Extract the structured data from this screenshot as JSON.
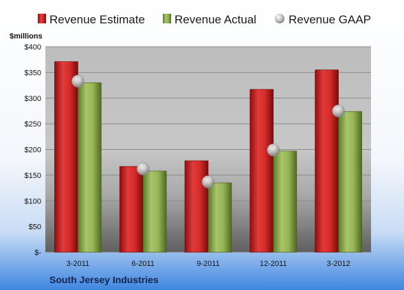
{
  "chart_data": {
    "type": "bar",
    "ylabel": "$millions",
    "categories": [
      "3-2011",
      "6-2011",
      "9-2011",
      "12-2011",
      "3-2012"
    ],
    "ylim": [
      0,
      400
    ],
    "yticks": [
      0,
      50,
      100,
      150,
      200,
      250,
      300,
      350,
      400
    ],
    "ytick_labels": [
      "$-",
      "$50",
      "$100",
      "$150",
      "$200",
      "$250",
      "$300",
      "$350",
      "$400"
    ],
    "grid": true,
    "legend_position": "top",
    "series": [
      {
        "name": "Revenue Estimate",
        "kind": "bar",
        "color": "#cc2222",
        "values": [
          371,
          167,
          178,
          317,
          355
        ]
      },
      {
        "name": "Revenue Actual",
        "kind": "bar",
        "color": "#8fad4f",
        "values": [
          330,
          158,
          135,
          197,
          274
        ]
      },
      {
        "name": "Revenue GAAP",
        "kind": "marker",
        "color": "#b0b0b0",
        "values": [
          333,
          162,
          137,
          199,
          275
        ]
      }
    ]
  },
  "footer": {
    "company": "South Jersey Industries"
  }
}
